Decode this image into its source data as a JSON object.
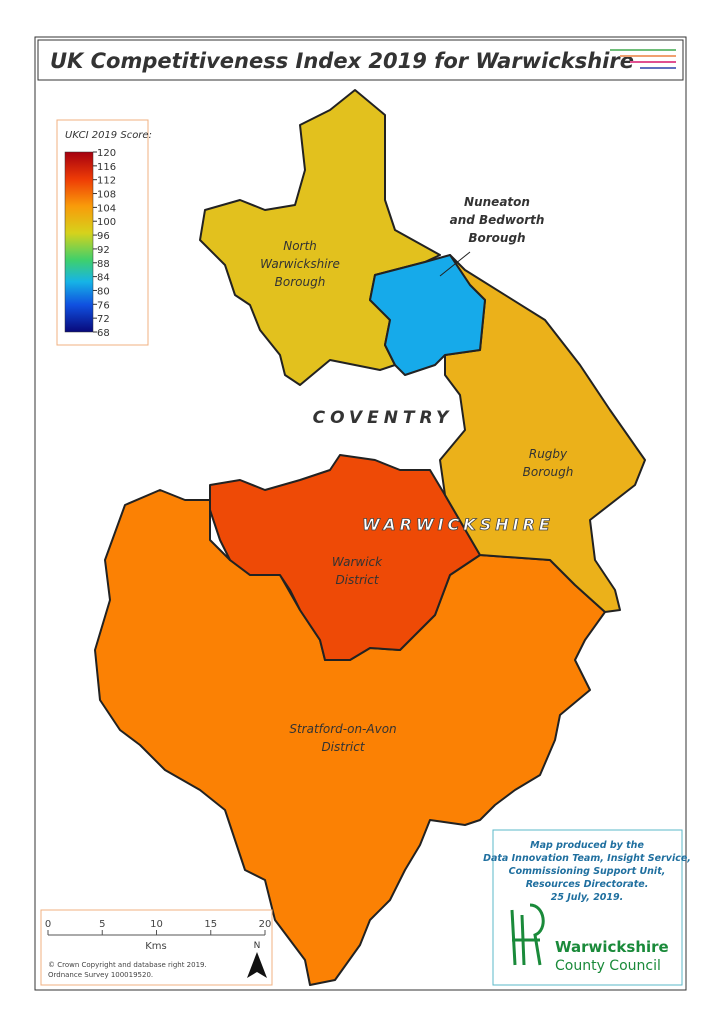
{
  "title": "UK Competitiveness Index 2019 for Warwickshire",
  "legend": {
    "title": "UKCI 2019 Score:",
    "ticks": [
      120,
      116,
      112,
      108,
      104,
      100,
      96,
      92,
      88,
      84,
      80,
      76,
      72,
      68
    ]
  },
  "regions": [
    {
      "label_lines": [
        "North",
        "Warwickshire",
        "Borough"
      ]
    },
    {
      "label_lines": [
        "Nuneaton",
        "and Bedworth",
        "Borough"
      ]
    },
    {
      "label_lines": [
        "Rugby",
        "Borough"
      ]
    },
    {
      "label_lines": [
        "Warwick",
        "District"
      ]
    },
    {
      "label_lines": [
        "Stratford-on-Avon",
        "District"
      ]
    }
  ],
  "places": [
    "COVENTRY",
    "WARWICKSHIRE"
  ],
  "scale_bar": {
    "ticks": [
      0,
      5,
      10,
      15,
      20
    ],
    "unit": "Kms"
  },
  "north": "N",
  "copyright": [
    "© Crown Copyright and database right 2019.",
    "Ordnance Survey 100019520."
  ],
  "credits": [
    "Map produced by the",
    "Data Innovation Team, Insight Service,",
    "Commissioning Support Unit,",
    "Resources Directorate.",
    "25 July, 2019."
  ],
  "logo": [
    "Warwickshire",
    "County Council"
  ]
}
